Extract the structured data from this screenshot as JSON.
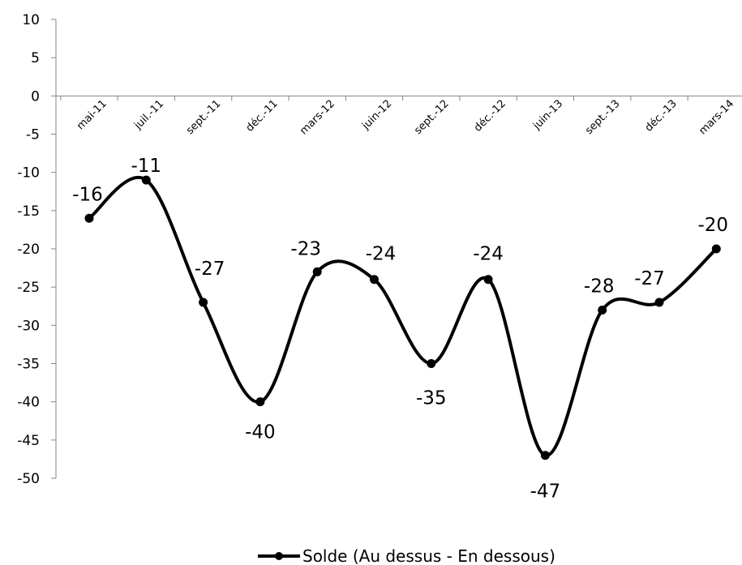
{
  "chart_data": {
    "type": "line",
    "categories": [
      "mai-11",
      "juil.-11",
      "sept.-11",
      "déc.-11",
      "mars-12",
      "juin-12",
      "sept.-12",
      "déc.-12",
      "juin-13",
      "sept.-13",
      "déc.-13",
      "mars-14"
    ],
    "series": [
      {
        "name": "Solde (Au dessus - En dessous)",
        "values": [
          -16,
          -11,
          -27,
          -40,
          -23,
          -24,
          -35,
          -24,
          -47,
          -28,
          -27,
          -20
        ],
        "color": "#000000",
        "smooth": true,
        "markers": true,
        "data_labels": true
      }
    ],
    "ylim": [
      -50,
      10
    ],
    "yticks": [
      10,
      5,
      0,
      -5,
      -10,
      -15,
      -20,
      -25,
      -30,
      -35,
      -40,
      -45,
      -50
    ],
    "grid": false,
    "legend_position": "bottom",
    "title": "",
    "xlabel": "",
    "ylabel": ""
  }
}
